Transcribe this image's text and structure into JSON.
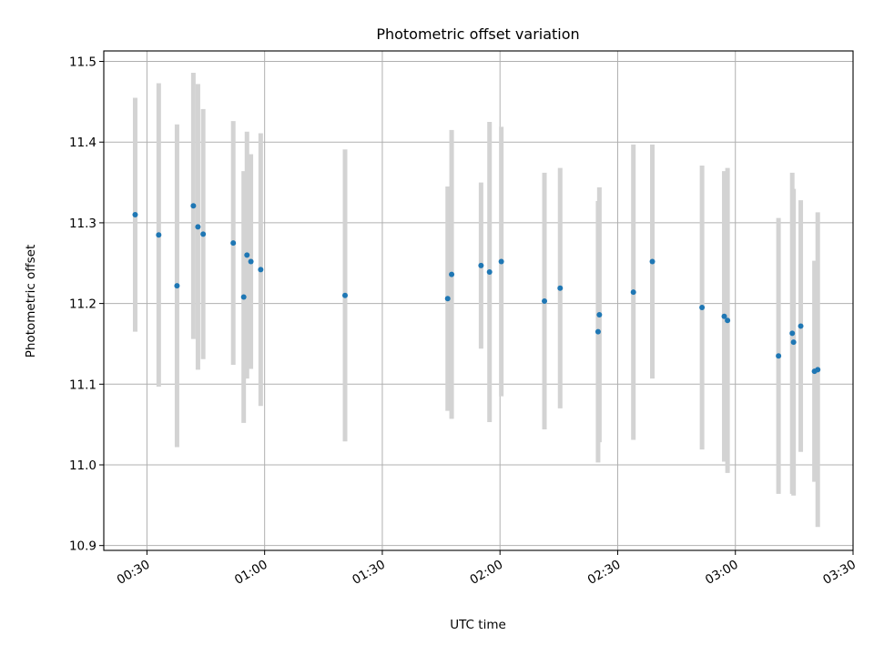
{
  "chart_data": {
    "type": "scatter",
    "title": "Photometric offset variation",
    "xlabel": "UTC time",
    "ylabel": "Photometric offset",
    "xlim": [
      "00:19",
      "03:30"
    ],
    "ylim": [
      10.894,
      11.513
    ],
    "x_ticks": [
      "00:30",
      "01:00",
      "01:30",
      "02:00",
      "02:30",
      "03:00",
      "03:30"
    ],
    "y_ticks": [
      10.9,
      11.0,
      11.1,
      11.2,
      11.3,
      11.4,
      11.5
    ],
    "y_tick_labels": [
      "10.9",
      "11.0",
      "11.1",
      "11.2",
      "11.3",
      "11.4",
      "11.5"
    ],
    "grid": true,
    "point_color": "#1f77b4",
    "errorbar_color": "#d3d3d3",
    "points": [
      {
        "time": "00:27:00",
        "y": 11.31,
        "err": 0.145
      },
      {
        "time": "00:33:00",
        "y": 11.285,
        "err": 0.188
      },
      {
        "time": "00:37:40",
        "y": 11.222,
        "err": 0.2
      },
      {
        "time": "00:41:50",
        "y": 11.321,
        "err": 0.165
      },
      {
        "time": "00:43:00",
        "y": 11.295,
        "err": 0.177
      },
      {
        "time": "00:44:20",
        "y": 11.286,
        "err": 0.155
      },
      {
        "time": "00:52:00",
        "y": 11.275,
        "err": 0.151
      },
      {
        "time": "00:54:40",
        "y": 11.208,
        "err": 0.156
      },
      {
        "time": "00:55:30",
        "y": 11.26,
        "err": 0.153
      },
      {
        "time": "00:56:30",
        "y": 11.252,
        "err": 0.133
      },
      {
        "time": "00:59:00",
        "y": 11.242,
        "err": 0.169
      },
      {
        "time": "01:20:30",
        "y": 11.21,
        "err": 0.181
      },
      {
        "time": "01:46:40",
        "y": 11.206,
        "err": 0.139
      },
      {
        "time": "01:47:40",
        "y": 11.236,
        "err": 0.179
      },
      {
        "time": "01:55:10",
        "y": 11.247,
        "err": 0.103
      },
      {
        "time": "01:57:20",
        "y": 11.239,
        "err": 0.186
      },
      {
        "time": "02:00:20",
        "y": 11.252,
        "err": 0.167
      },
      {
        "time": "02:11:20",
        "y": 11.203,
        "err": 0.159
      },
      {
        "time": "02:15:20",
        "y": 11.219,
        "err": 0.149
      },
      {
        "time": "02:25:00",
        "y": 11.165,
        "err": 0.162
      },
      {
        "time": "02:25:20",
        "y": 11.186,
        "err": 0.158
      },
      {
        "time": "02:34:00",
        "y": 11.214,
        "err": 0.183
      },
      {
        "time": "02:38:50",
        "y": 11.252,
        "err": 0.145
      },
      {
        "time": "02:51:30",
        "y": 11.195,
        "err": 0.176
      },
      {
        "time": "02:57:10",
        "y": 11.184,
        "err": 0.18
      },
      {
        "time": "02:58:00",
        "y": 11.179,
        "err": 0.189
      },
      {
        "time": "03:11:00",
        "y": 11.135,
        "err": 0.171
      },
      {
        "time": "03:14:30",
        "y": 11.163,
        "err": 0.199
      },
      {
        "time": "03:14:50",
        "y": 11.152,
        "err": 0.19
      },
      {
        "time": "03:16:40",
        "y": 11.172,
        "err": 0.156
      },
      {
        "time": "03:20:10",
        "y": 11.116,
        "err": 0.137
      },
      {
        "time": "03:21:00",
        "y": 11.118,
        "err": 0.195
      }
    ]
  }
}
